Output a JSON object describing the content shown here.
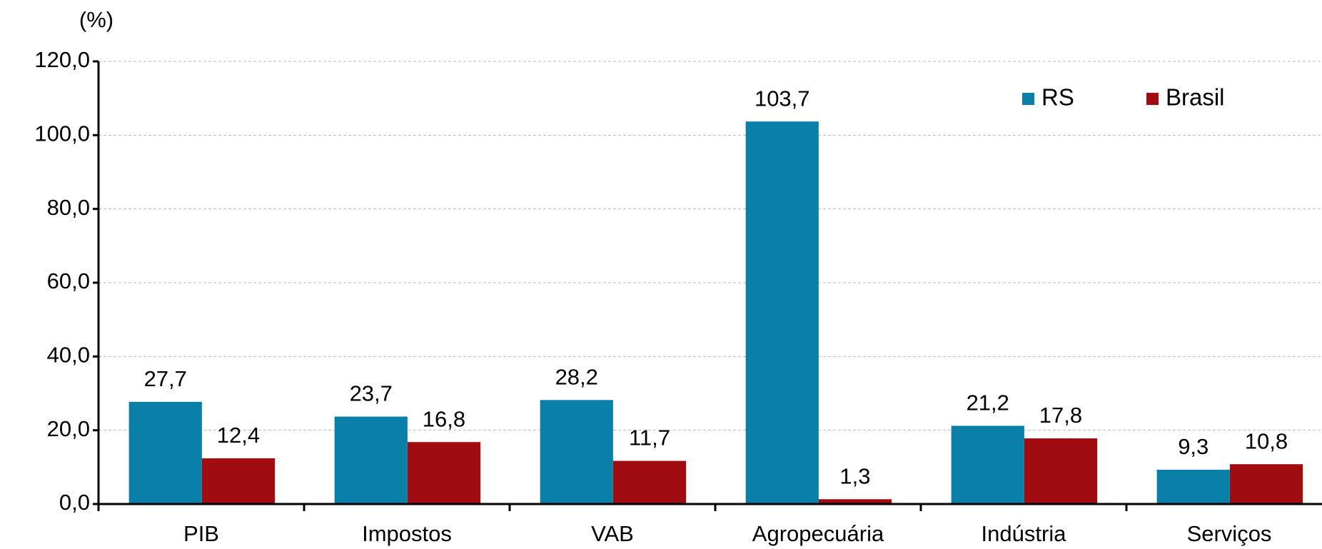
{
  "chart_data": {
    "type": "bar",
    "y_label": "(%)",
    "categories": [
      "PIB",
      "Impostos",
      "VAB",
      "Agropecuária",
      "Indústria",
      "Serviços"
    ],
    "series": [
      {
        "name": "RS",
        "color": "#0a7fa8",
        "values": [
          27.7,
          23.7,
          28.2,
          103.7,
          21.2,
          9.3
        ],
        "value_labels": [
          "27,7",
          "23,7",
          "28,2",
          "103,7",
          "21,2",
          "9,3"
        ]
      },
      {
        "name": "Brasil",
        "color": "#a00c10",
        "values": [
          12.4,
          16.8,
          11.7,
          1.3,
          17.8,
          10.8
        ],
        "value_labels": [
          "12,4",
          "16,8",
          "11,7",
          "1,3",
          "17,8",
          "10,8"
        ]
      }
    ],
    "ylim": [
      0,
      120
    ],
    "yticks": [
      {
        "value": 0,
        "label": "0,0"
      },
      {
        "value": 20,
        "label": "20,0"
      },
      {
        "value": 40,
        "label": "40,0"
      },
      {
        "value": 60,
        "label": "60,0"
      },
      {
        "value": 80,
        "label": "80,0"
      },
      {
        "value": 100,
        "label": "100,0"
      },
      {
        "value": 120,
        "label": "120,0"
      }
    ],
    "grid": true,
    "legend": "top-right"
  }
}
